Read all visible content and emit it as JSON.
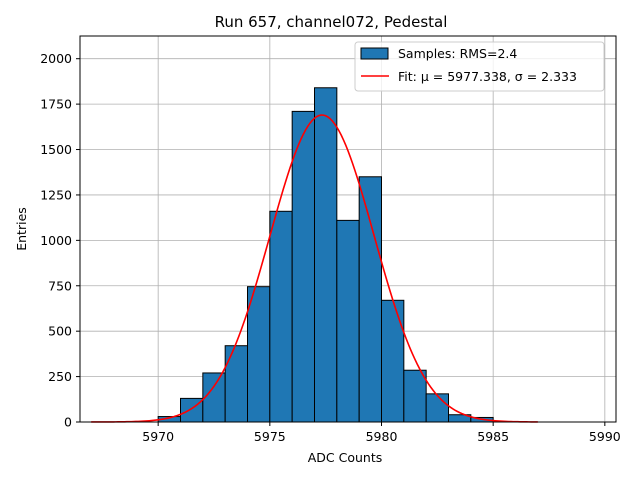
{
  "chart_data": {
    "type": "bar",
    "title": "Run 657, channel072, Pedestal",
    "xlabel": "ADC Counts",
    "ylabel": "Entries",
    "xlim": [
      5966.5,
      5990.5
    ],
    "ylim": [
      0,
      2125
    ],
    "xticks": [
      5970,
      5975,
      5980,
      5985,
      5990
    ],
    "yticks": [
      0,
      250,
      500,
      750,
      1000,
      1250,
      1500,
      1750,
      2000
    ],
    "grid": true,
    "legend_position": "top-right",
    "histogram": {
      "name": "Samples: RMS=2.4",
      "bin_edges": [
        5970,
        5971,
        5972,
        5973,
        5974,
        5975,
        5976,
        5977,
        5978,
        5979,
        5980,
        5981,
        5982,
        5983,
        5984,
        5985
      ],
      "counts": [
        30,
        130,
        270,
        420,
        745,
        1160,
        1710,
        1840,
        1110,
        1350,
        670,
        285,
        155,
        40,
        25
      ],
      "color": "#1f77b4"
    },
    "fit": {
      "name": "Fit: μ = 5977.338, σ = 2.333",
      "mu": 5977.338,
      "sigma": 2.333,
      "amplitude": 1690,
      "x_range": [
        5967,
        5987
      ],
      "color": "#ff0000"
    }
  }
}
